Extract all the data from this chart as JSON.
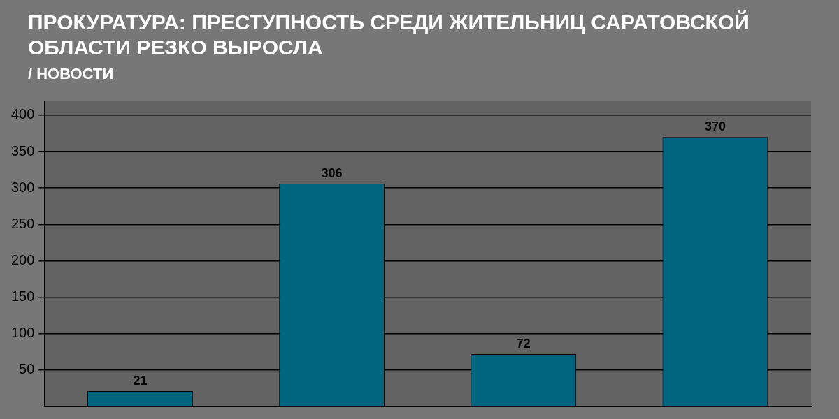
{
  "chart_data": {
    "type": "bar",
    "title": "ПРОКУРАТУРА: ПРЕСТУПНОСТЬ СРЕДИ ЖИТЕЛЬНИЦ САРАТОВСКОЙ ОБЛАСТИ РЕЗКО ВЫРОСЛА",
    "annotations": [
      "/ НОВОСТИ"
    ],
    "categories": [
      null,
      null,
      null,
      null
    ],
    "values": [
      21,
      306,
      72,
      370
    ],
    "color": "#006680",
    "ylim": [
      0,
      420
    ],
    "yticks": [
      50,
      100,
      150,
      200,
      250,
      300,
      350,
      400
    ],
    "grid": "y",
    "data_labels": true
  }
}
